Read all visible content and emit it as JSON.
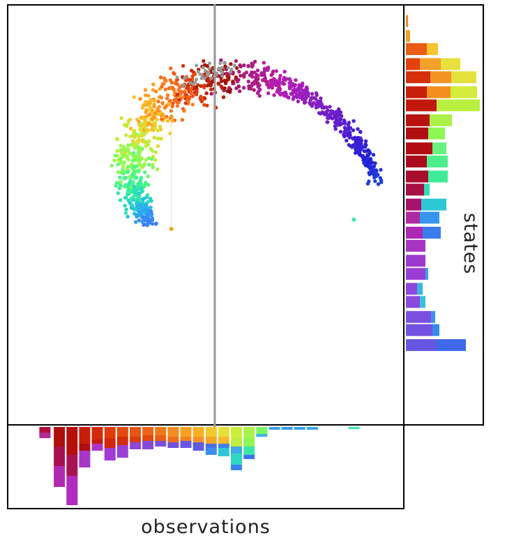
{
  "chart_data": {
    "type": "scatter",
    "xlabel": "observations",
    "ylabel": "states",
    "description_of_marks": "spiral point cloud colored by angle (turbo colormap), with marginal stacked histograms",
    "cursor_x": 0.0,
    "xlim": [
      -1.15,
      1.05
    ],
    "ylim": [
      -1.1,
      1.15
    ],
    "spiral": {
      "turns_start_angle_deg": 120,
      "turns_end_angle_deg": -60,
      "start_radius": 0.3,
      "end_radius": 0.98
    },
    "outlier_points": [
      {
        "x": -0.24,
        "y": 0.55,
        "color": "#e1a026"
      },
      {
        "x": -0.24,
        "y": -0.05,
        "color": "#f6a323"
      },
      {
        "x": 0.77,
        "y": 0.0,
        "color": "#3be8a3"
      }
    ],
    "right_histogram": {
      "rows": [
        {
          "y": 1.06,
          "segments": [
            {
              "w": 3,
              "c": "#f58020"
            }
          ]
        },
        {
          "y": 0.98,
          "segments": [
            {
              "w": 6,
              "c": "#f5a023"
            }
          ]
        },
        {
          "y": 0.91,
          "segments": [
            {
              "w": 30,
              "c": "#ea5b13"
            },
            {
              "w": 16,
              "c": "#f9c330"
            }
          ]
        },
        {
          "y": 0.83,
          "segments": [
            {
              "w": 20,
              "c": "#e2400e"
            },
            {
              "w": 30,
              "c": "#f3a12a"
            },
            {
              "w": 28,
              "c": "#e8e03c"
            }
          ]
        },
        {
          "y": 0.76,
          "segments": [
            {
              "w": 35,
              "c": "#d42e0a"
            },
            {
              "w": 30,
              "c": "#f39422"
            },
            {
              "w": 36,
              "c": "#e3e23d"
            }
          ]
        },
        {
          "y": 0.68,
          "segments": [
            {
              "w": 30,
              "c": "#c71f09"
            },
            {
              "w": 34,
              "c": "#f28f1f"
            },
            {
              "w": 38,
              "c": "#d4ec3b"
            }
          ]
        },
        {
          "y": 0.61,
          "segments": [
            {
              "w": 44,
              "c": "#c2180b"
            },
            {
              "w": 62,
              "c": "#b9f040"
            }
          ]
        },
        {
          "y": 0.53,
          "segments": [
            {
              "w": 34,
              "c": "#b7120e"
            },
            {
              "w": 32,
              "c": "#abf148"
            }
          ]
        },
        {
          "y": 0.46,
          "segments": [
            {
              "w": 32,
              "c": "#b00e10"
            },
            {
              "w": 24,
              "c": "#8ef655"
            }
          ]
        },
        {
          "y": 0.38,
          "segments": [
            {
              "w": 38,
              "c": "#b00c12"
            },
            {
              "w": 20,
              "c": "#66f27c"
            }
          ]
        },
        {
          "y": 0.31,
          "segments": [
            {
              "w": 30,
              "c": "#aa0a1d"
            },
            {
              "w": 30,
              "c": "#4dee8e"
            }
          ]
        },
        {
          "y": 0.23,
          "segments": [
            {
              "w": 32,
              "c": "#a70d2c"
            },
            {
              "w": 28,
              "c": "#40eb98"
            }
          ]
        },
        {
          "y": 0.16,
          "segments": [
            {
              "w": 26,
              "c": "#a70e45"
            },
            {
              "w": 8,
              "c": "#32dfb3"
            }
          ]
        },
        {
          "y": 0.08,
          "segments": [
            {
              "w": 22,
              "c": "#a8116c"
            },
            {
              "w": 36,
              "c": "#2dc8d6"
            }
          ]
        },
        {
          "y": 0.01,
          "segments": [
            {
              "w": 20,
              "c": "#ad2aa2"
            },
            {
              "w": 28,
              "c": "#3496ec"
            }
          ]
        },
        {
          "y": -0.07,
          "segments": [
            {
              "w": 24,
              "c": "#ad28b4"
            },
            {
              "w": 26,
              "c": "#3a7bef"
            }
          ]
        },
        {
          "y": -0.14,
          "segments": [
            {
              "w": 28,
              "c": "#a733c2"
            }
          ]
        },
        {
          "y": -0.22,
          "segments": [
            {
              "w": 28,
              "c": "#9c39cf"
            }
          ]
        },
        {
          "y": -0.29,
          "segments": [
            {
              "w": 28,
              "c": "#9a3ed6"
            },
            {
              "w": 4,
              "c": "#3aa3ea"
            }
          ]
        },
        {
          "y": -0.37,
          "segments": [
            {
              "w": 16,
              "c": "#8f45db"
            },
            {
              "w": 8,
              "c": "#3ab4e3"
            }
          ]
        },
        {
          "y": -0.44,
          "segments": [
            {
              "w": 20,
              "c": "#8a4ade"
            },
            {
              "w": 8,
              "c": "#3ac0df"
            }
          ]
        },
        {
          "y": -0.52,
          "segments": [
            {
              "w": 36,
              "c": "#7b4fe0"
            },
            {
              "w": 6,
              "c": "#3a93ee"
            }
          ]
        },
        {
          "y": -0.59,
          "segments": [
            {
              "w": 38,
              "c": "#7152e1"
            },
            {
              "w": 10,
              "c": "#3a88ef"
            }
          ]
        },
        {
          "y": -0.67,
          "segments": [
            {
              "w": 44,
              "c": "#6557e2"
            },
            {
              "w": 42,
              "c": "#4069e9"
            }
          ]
        }
      ]
    },
    "bottom_histogram": {
      "cols": [
        {
          "x": -0.94,
          "segments": [
            {
              "h": 8,
              "c": "#ad0e3c"
            },
            {
              "h": 8,
              "c": "#b52896"
            }
          ]
        },
        {
          "x": -0.86,
          "segments": [
            {
              "h": 28,
              "c": "#b0100c"
            },
            {
              "h": 28,
              "c": "#a8114f"
            },
            {
              "h": 30,
              "c": "#b02ab0"
            }
          ]
        },
        {
          "x": -0.79,
          "segments": [
            {
              "h": 40,
              "c": "#b50f0b"
            },
            {
              "h": 30,
              "c": "#a81353"
            },
            {
              "h": 42,
              "c": "#b22bbe"
            }
          ]
        },
        {
          "x": -0.72,
          "segments": [
            {
              "h": 24,
              "c": "#c81e09"
            },
            {
              "h": 10,
              "c": "#b00e12"
            },
            {
              "h": 24,
              "c": "#a637c9"
            }
          ]
        },
        {
          "x": -0.65,
          "segments": [
            {
              "h": 18,
              "c": "#d22b0a"
            },
            {
              "h": 6,
              "c": "#c41b0c"
            },
            {
              "h": 10,
              "c": "#ae34c6"
            }
          ]
        },
        {
          "x": -0.58,
          "segments": [
            {
              "h": 16,
              "c": "#dd3b0c"
            },
            {
              "h": 14,
              "c": "#d0270a"
            },
            {
              "h": 18,
              "c": "#a33bd2"
            }
          ]
        },
        {
          "x": -0.51,
          "segments": [
            {
              "h": 14,
              "c": "#e24a0e"
            },
            {
              "h": 12,
              "c": "#d22e0a"
            },
            {
              "h": 18,
              "c": "#9a40d6"
            }
          ]
        },
        {
          "x": -0.44,
          "segments": [
            {
              "h": 14,
              "c": "#e65512"
            },
            {
              "h": 8,
              "c": "#dd3d0c"
            },
            {
              "h": 10,
              "c": "#8c47db"
            }
          ]
        },
        {
          "x": -0.37,
          "segments": [
            {
              "h": 12,
              "c": "#eb6417"
            },
            {
              "h": 8,
              "c": "#e3490e"
            },
            {
              "h": 12,
              "c": "#854adc"
            }
          ]
        },
        {
          "x": -0.3,
          "segments": [
            {
              "h": 12,
              "c": "#ef7a1c"
            },
            {
              "h": 8,
              "c": "#ea5c13"
            },
            {
              "h": 8,
              "c": "#7a4fde"
            }
          ]
        },
        {
          "x": -0.23,
          "segments": [
            {
              "h": 14,
              "c": "#f38b20"
            },
            {
              "h": 8,
              "c": "#ee6d18"
            },
            {
              "h": 8,
              "c": "#7152e0"
            }
          ]
        },
        {
          "x": -0.16,
          "segments": [
            {
              "h": 14,
              "c": "#f6a023"
            },
            {
              "h": 6,
              "c": "#f08220"
            },
            {
              "h": 10,
              "c": "#6857e2"
            }
          ]
        },
        {
          "x": -0.09,
          "segments": [
            {
              "h": 14,
              "c": "#f8b126"
            },
            {
              "h": 8,
              "c": "#f4922a"
            },
            {
              "h": 12,
              "c": "#5f5ce3"
            }
          ]
        },
        {
          "x": -0.02,
          "segments": [
            {
              "h": 14,
              "c": "#f2c82e"
            },
            {
              "h": 10,
              "c": "#f5a323"
            },
            {
              "h": 6,
              "c": "#4a6ee8"
            },
            {
              "h": 10,
              "c": "#3d8cee"
            }
          ]
        },
        {
          "x": 0.05,
          "segments": [
            {
              "h": 14,
              "c": "#e5e13b"
            },
            {
              "h": 10,
              "c": "#f8b82a"
            },
            {
              "h": 6,
              "c": "#3f7fee"
            },
            {
              "h": 12,
              "c": "#2fc7d8"
            }
          ]
        },
        {
          "x": 0.12,
          "segments": [
            {
              "h": 16,
              "c": "#cbee3c"
            },
            {
              "h": 12,
              "c": "#c0ed40"
            },
            {
              "h": 10,
              "c": "#3fa8e8"
            },
            {
              "h": 16,
              "c": "#2fd8c4"
            },
            {
              "h": 8,
              "c": "#3a84ee"
            }
          ]
        },
        {
          "x": 0.19,
          "segments": [
            {
              "h": 16,
              "c": "#a8f24a"
            },
            {
              "h": 12,
              "c": "#8ef655"
            },
            {
              "h": 12,
              "c": "#39e6a8"
            },
            {
              "h": 6,
              "c": "#3b76ee"
            }
          ]
        },
        {
          "x": 0.26,
          "segments": [
            {
              "h": 10,
              "c": "#7af662"
            },
            {
              "h": 4,
              "c": "#3fb5e5"
            }
          ]
        },
        {
          "x": 0.33,
          "segments": [
            {
              "h": 4,
              "c": "#3aa0ea"
            }
          ]
        },
        {
          "x": 0.4,
          "segments": [
            {
              "h": 4,
              "c": "#3a9aec"
            }
          ]
        },
        {
          "x": 0.47,
          "segments": [
            {
              "h": 4,
              "c": "#3aa2ea"
            }
          ]
        },
        {
          "x": 0.54,
          "segments": [
            {
              "h": 4,
              "c": "#3aa8e8"
            }
          ]
        },
        {
          "x": 0.77,
          "segments": [
            {
              "h": 3,
              "c": "#3be8a3"
            }
          ]
        }
      ]
    }
  },
  "labels": {
    "xlabel": "observations",
    "ylabel": "states"
  }
}
